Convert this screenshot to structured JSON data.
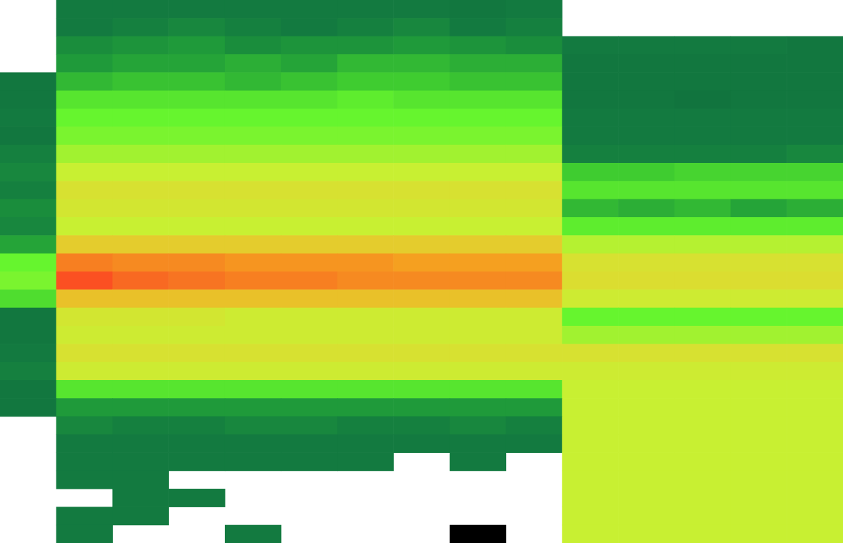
{
  "chart_data": {
    "type": "heatmap",
    "tick_labels": false,
    "color_range": [
      1,
      10
    ],
    "cells": [
      [
        null,
        2,
        2,
        2,
        2,
        2,
        2,
        2,
        1.8,
        2,
        null,
        null,
        null,
        null,
        null
      ],
      [
        null,
        2,
        2.2,
        2.4,
        2.2,
        2,
        2.2,
        2.4,
        2,
        2.2,
        null,
        null,
        null,
        null,
        null
      ],
      [
        null,
        2.6,
        2.8,
        3,
        2.6,
        2.8,
        2.8,
        3,
        2.8,
        2.6,
        2,
        2,
        2,
        2,
        1.8
      ],
      [
        null,
        3,
        3.2,
        3.2,
        3.4,
        3.2,
        3.6,
        3.6,
        3.4,
        3.4,
        1.8,
        1.8,
        1.8,
        1.8,
        1.8
      ],
      [
        1.8,
        3.6,
        3.8,
        3.8,
        3.6,
        3.8,
        4,
        4,
        3.8,
        3.8,
        1.8,
        1.8,
        1.8,
        1.8,
        1.8
      ],
      [
        1.8,
        4.6,
        4.6,
        4.6,
        4.6,
        4.6,
        4.8,
        4.6,
        4.6,
        4.6,
        1.8,
        1.8,
        1.6,
        1.8,
        1.8
      ],
      [
        2,
        5,
        5,
        5,
        5,
        5,
        5,
        5,
        5,
        5,
        2,
        2,
        2,
        2,
        2
      ],
      [
        1.8,
        5.2,
        5.2,
        5.2,
        5.2,
        5.2,
        5.2,
        5.2,
        5.2,
        5.2,
        2,
        2,
        2,
        2,
        2
      ],
      [
        2.2,
        5.6,
        5.6,
        5.6,
        5.6,
        5.6,
        5.6,
        5.6,
        5.6,
        5.6,
        2.2,
        2.2,
        2.2,
        2.2,
        2.4
      ],
      [
        2.4,
        6,
        6,
        6,
        6,
        6,
        6,
        6,
        6,
        6,
        4,
        4,
        4.2,
        4.2,
        4.2
      ],
      [
        2.2,
        6.6,
        6.6,
        6.6,
        6.6,
        6.6,
        6.6,
        6.6,
        6.6,
        6.6,
        4.6,
        4.6,
        4.6,
        4.6,
        4.6
      ],
      [
        2.6,
        6.4,
        6.4,
        6.4,
        6.4,
        6.4,
        6.4,
        6.4,
        6.4,
        6.4,
        3.6,
        3.4,
        3.6,
        3.2,
        3.4
      ],
      [
        2.4,
        6,
        6,
        6,
        6,
        6,
        6,
        6,
        6,
        6,
        4.8,
        4.8,
        4.8,
        4.8,
        4.8
      ],
      [
        3.2,
        7.2,
        7.2,
        7.2,
        7.2,
        7.2,
        7.2,
        7.2,
        7.2,
        7.2,
        5.8,
        5.8,
        5.8,
        5.8,
        5.8
      ],
      [
        5,
        8.6,
        8.4,
        8.4,
        8.2,
        8.2,
        8.2,
        8,
        8,
        8,
        6.6,
        6.6,
        6.6,
        6.6,
        6.6
      ],
      [
        5.2,
        9.4,
        9,
        8.8,
        8.6,
        8.6,
        8.4,
        8.4,
        8.4,
        8.4,
        6.8,
        6.8,
        6.8,
        6.8,
        6.8
      ],
      [
        4.4,
        7.4,
        7.4,
        7.4,
        7.4,
        7.4,
        7.4,
        7.4,
        7.4,
        7.4,
        6.2,
        6.2,
        6.2,
        6.2,
        6.2
      ],
      [
        1.8,
        6.4,
        6.4,
        6.4,
        6.2,
        6.2,
        6.2,
        6.2,
        6.2,
        6.2,
        5,
        5,
        5,
        5,
        5
      ],
      [
        1.8,
        6.2,
        6.2,
        6.2,
        6.2,
        6.2,
        6.2,
        6.2,
        6.2,
        6.2,
        5.6,
        5.6,
        5.6,
        5.6,
        5.6
      ],
      [
        2,
        6.6,
        6.6,
        6.6,
        6.6,
        6.6,
        6.6,
        6.6,
        6.6,
        6.6,
        6.6,
        6.6,
        6.6,
        6.6,
        6.6
      ],
      [
        2.2,
        6.2,
        6.2,
        6.2,
        6.2,
        6.2,
        6.2,
        6.2,
        6.2,
        6.2,
        6.2,
        6.2,
        6.2,
        6.2,
        6.2
      ],
      [
        1.8,
        4.6,
        4.6,
        4.6,
        4.6,
        4.6,
        4.6,
        4.6,
        4.6,
        4.6,
        6,
        6,
        6,
        6,
        6
      ],
      [
        1.8,
        3,
        3,
        3,
        3,
        3,
        3,
        3,
        3,
        3,
        6,
        6,
        6,
        6,
        6
      ],
      [
        null,
        2.4,
        2.2,
        2.2,
        2.4,
        2.4,
        2.2,
        2.2,
        2.4,
        2.2,
        6,
        6,
        6,
        6,
        6
      ],
      [
        null,
        2,
        2,
        2,
        2,
        2,
        2,
        2,
        2,
        2,
        6,
        6,
        6,
        6,
        6
      ],
      [
        null,
        2,
        2,
        2,
        2,
        2,
        2,
        null,
        2,
        null,
        6,
        6,
        6,
        6,
        6
      ],
      [
        null,
        2,
        2,
        null,
        null,
        null,
        null,
        null,
        null,
        null,
        6,
        6,
        6,
        6,
        6
      ],
      [
        null,
        null,
        2,
        2,
        null,
        null,
        null,
        null,
        null,
        null,
        6,
        6,
        6,
        6,
        6
      ],
      [
        null,
        2,
        2,
        null,
        null,
        null,
        null,
        null,
        null,
        null,
        6,
        6,
        6,
        6,
        6
      ],
      [
        null,
        2,
        null,
        null,
        2,
        null,
        null,
        null,
        0,
        null,
        6,
        6,
        6,
        6,
        6
      ]
    ]
  }
}
